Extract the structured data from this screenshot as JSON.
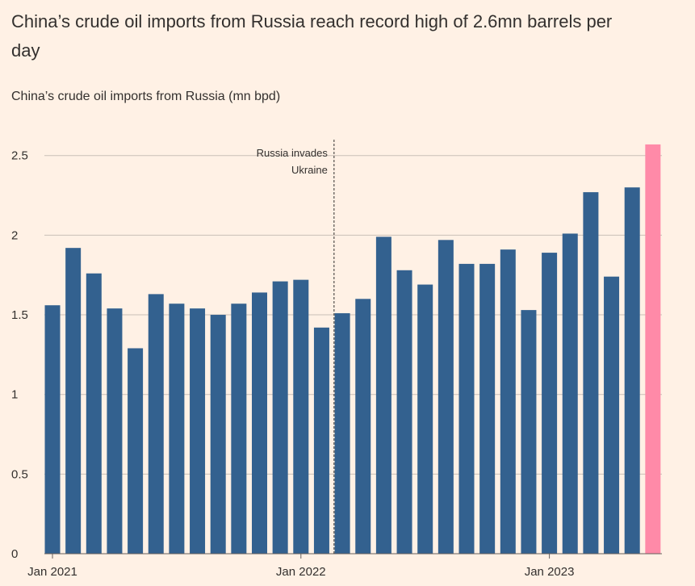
{
  "chart_data": {
    "type": "bar",
    "title": "China’s crude oil imports from Russia reach record high of 2.6mn barrels per day",
    "subtitle": "China’s crude oil imports from Russia (mn bpd)",
    "annotation": [
      "Russia invades",
      "Ukraine"
    ],
    "categories": [
      "Jan 2021",
      null,
      null,
      null,
      null,
      null,
      null,
      null,
      null,
      null,
      null,
      null,
      "Jan 2022",
      null,
      null,
      null,
      null,
      null,
      null,
      null,
      null,
      null,
      null,
      null,
      "Jan 2023",
      null,
      null,
      null,
      null,
      null
    ],
    "values": [
      1.56,
      1.92,
      1.76,
      1.54,
      1.29,
      1.63,
      1.57,
      1.54,
      1.5,
      1.57,
      1.64,
      1.71,
      1.72,
      1.42,
      1.51,
      1.6,
      1.99,
      1.78,
      1.69,
      1.97,
      1.82,
      1.82,
      1.91,
      1.53,
      1.89,
      2.01,
      2.27,
      1.74,
      2.3,
      2.57
    ],
    "colors": [
      "#33618f",
      "#33618f",
      "#33618f",
      "#33618f",
      "#33618f",
      "#33618f",
      "#33618f",
      "#33618f",
      "#33618f",
      "#33618f",
      "#33618f",
      "#33618f",
      "#33618f",
      "#33618f",
      "#33618f",
      "#33618f",
      "#33618f",
      "#33618f",
      "#33618f",
      "#33618f",
      "#33618f",
      "#33618f",
      "#33618f",
      "#33618f",
      "#33618f",
      "#33618f",
      "#33618f",
      "#33618f",
      "#33618f",
      "#ff8aa8"
    ],
    "ylim": [
      0,
      2.6
    ],
    "yticks": [
      0,
      0.5,
      1,
      1.5,
      2,
      2.5
    ],
    "grid": true
  }
}
